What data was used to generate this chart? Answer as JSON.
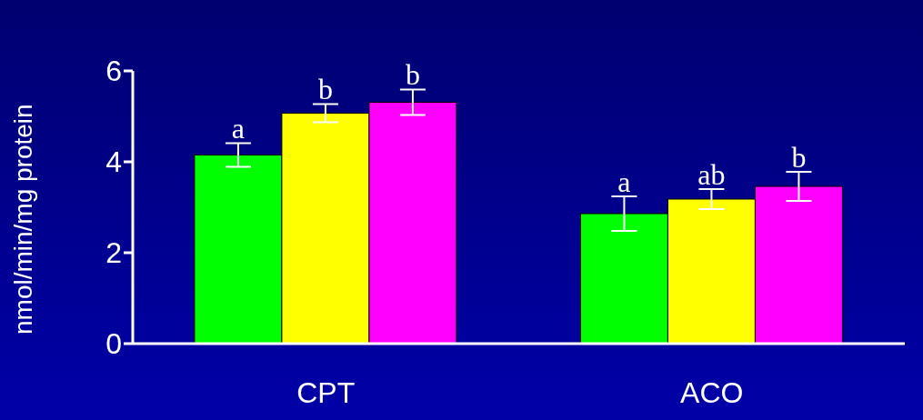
{
  "chart_data": {
    "type": "bar",
    "ylabel": "nmol/min/mg protein",
    "categories": [
      "CPT",
      "ACO"
    ],
    "series": [
      {
        "color": "#00ff00",
        "values": [
          4.15,
          2.86
        ],
        "errors": [
          0.26,
          0.38
        ],
        "value_labels": [
          "a",
          "a"
        ]
      },
      {
        "color": "#ffff00",
        "values": [
          5.07,
          3.18
        ],
        "errors": [
          0.2,
          0.22
        ],
        "value_labels": [
          "b",
          "ab"
        ]
      },
      {
        "color": "#ff00ff",
        "values": [
          5.31,
          3.46
        ],
        "errors": [
          0.28,
          0.32
        ],
        "value_labels": [
          "b",
          "b"
        ]
      }
    ],
    "ylim": [
      0,
      6
    ],
    "yticks": [
      0,
      2,
      4,
      6
    ],
    "grid": false,
    "legend": false
  }
}
